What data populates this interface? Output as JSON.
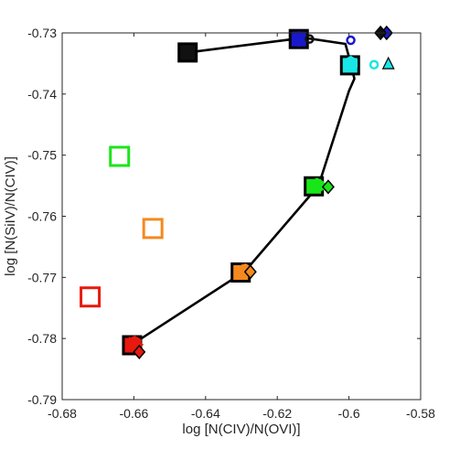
{
  "chart_data": {
    "type": "scatter",
    "title": "",
    "xlabel": "log [N(CIV)/N(OVI)]",
    "ylabel": "log [N(SiIV)/N(CIV)]",
    "xlim": [
      -0.68,
      -0.58
    ],
    "ylim": [
      -0.79,
      -0.73
    ],
    "xticks": [
      -0.68,
      -0.66,
      -0.64,
      -0.62,
      -0.6,
      -0.58
    ],
    "yticks": [
      -0.79,
      -0.78,
      -0.77,
      -0.76,
      -0.75,
      -0.74,
      -0.73
    ],
    "xtick_labels": [
      "-0.68",
      "-0.66",
      "-0.64",
      "-0.62",
      "-0.6",
      "-0.58"
    ],
    "ytick_labels": [
      "-0.79",
      "-0.78",
      "-0.77",
      "-0.76",
      "-0.75",
      "-0.74",
      "-0.73"
    ],
    "grid": false,
    "colors": {
      "red": "#e8190f",
      "orange": "#f5891e",
      "green": "#19e619",
      "cyan": "#19e6e6",
      "blue": "#1919cc",
      "black": "#111111"
    },
    "curve": {
      "x": [
        -0.6583,
        -0.6603,
        -0.629,
        -0.6085,
        -0.6,
        -0.5985,
        -0.5995,
        -0.601,
        -0.6125,
        -0.645
      ],
      "y": [
        -0.7822,
        -0.7809,
        -0.769,
        -0.755,
        -0.7395,
        -0.7375,
        -0.735,
        -0.7318,
        -0.7308,
        -0.7332
      ]
    },
    "series": [
      {
        "marker": "open-square",
        "points": [
          {
            "x": -0.6722,
            "y": -0.7732,
            "color": "red"
          },
          {
            "x": -0.6547,
            "y": -0.762,
            "color": "orange"
          },
          {
            "x": -0.664,
            "y": -0.7502,
            "color": "green"
          }
        ]
      },
      {
        "marker": "filled-square",
        "points": [
          {
            "x": -0.6605,
            "y": -0.7811,
            "color": "red"
          },
          {
            "x": -0.6302,
            "y": -0.7692,
            "color": "orange"
          },
          {
            "x": -0.6098,
            "y": -0.7551,
            "color": "green"
          },
          {
            "x": -0.5997,
            "y": -0.7353,
            "color": "cyan"
          },
          {
            "x": -0.614,
            "y": -0.731,
            "color": "blue"
          },
          {
            "x": -0.645,
            "y": -0.7332,
            "color": "black"
          }
        ]
      },
      {
        "marker": "hexagon",
        "points": [
          {
            "x": -0.6598,
            "y": -0.7808,
            "color": "red"
          },
          {
            "x": -0.6289,
            "y": -0.769,
            "color": "orange"
          },
          {
            "x": -0.6088,
            "y": -0.755,
            "color": "green"
          },
          {
            "x": -0.5995,
            "y": -0.735,
            "color": "cyan"
          },
          {
            "x": -0.614,
            "y": -0.731,
            "color": "blue"
          }
        ]
      },
      {
        "marker": "triangle-right",
        "points": [
          {
            "x": -0.6595,
            "y": -0.781,
            "color": "red"
          },
          {
            "x": -0.628,
            "y": -0.7691,
            "color": "orange"
          },
          {
            "x": -0.6075,
            "y": -0.755,
            "color": "green"
          }
        ]
      },
      {
        "marker": "diamond",
        "points": [
          {
            "x": -0.6585,
            "y": -0.7822,
            "color": "red"
          },
          {
            "x": -0.6275,
            "y": -0.7691,
            "color": "orange"
          },
          {
            "x": -0.6058,
            "y": -0.7552,
            "color": "green"
          },
          {
            "x": -0.5895,
            "y": -0.73,
            "color": "blue"
          },
          {
            "x": -0.5912,
            "y": -0.73,
            "color": "black"
          }
        ]
      },
      {
        "marker": "open-circle",
        "points": [
          {
            "x": -0.593,
            "y": -0.7352,
            "color": "cyan"
          },
          {
            "x": -0.5995,
            "y": -0.7312,
            "color": "blue"
          },
          {
            "x": -0.611,
            "y": -0.731,
            "color": "black"
          }
        ]
      },
      {
        "marker": "triangle-up",
        "points": [
          {
            "x": -0.589,
            "y": -0.7351,
            "color": "cyan"
          }
        ]
      }
    ]
  }
}
